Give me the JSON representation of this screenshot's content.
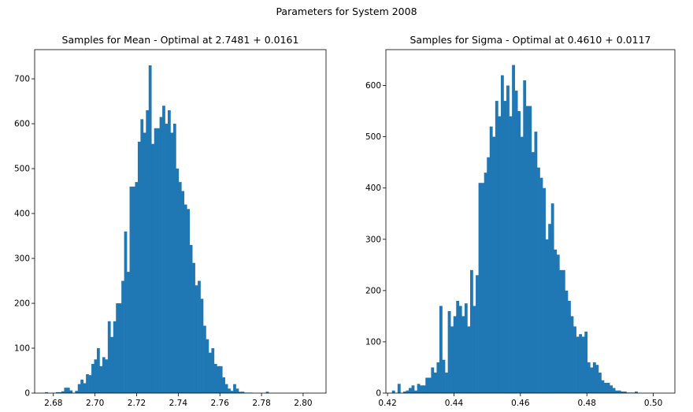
{
  "figure_title": "Parameters for System 2008",
  "colors": {
    "bar": "#1f77b4"
  },
  "chart_data": [
    {
      "type": "bar",
      "title": "Samples for Mean - Optimal at 2.7481 + 0.0161",
      "xlabel": "",
      "ylabel": "",
      "xlim": [
        2.671,
        2.811
      ],
      "ylim": [
        0,
        765
      ],
      "xticks": [
        "2.68",
        "2.70",
        "2.72",
        "2.74",
        "2.76",
        "2.78",
        "2.80"
      ],
      "yticks": [
        "0",
        "100",
        "200",
        "300",
        "400",
        "500",
        "600",
        "700"
      ],
      "bin_start": 2.676,
      "bin_width": 0.00131,
      "values": [
        2,
        0,
        0,
        0,
        2,
        2,
        4,
        12,
        12,
        6,
        0,
        5,
        20,
        30,
        22,
        42,
        40,
        65,
        75,
        100,
        60,
        80,
        75,
        160,
        125,
        160,
        200,
        200,
        250,
        360,
        270,
        460,
        460,
        470,
        560,
        610,
        580,
        630,
        730,
        555,
        590,
        590,
        615,
        640,
        600,
        630,
        580,
        600,
        500,
        470,
        450,
        420,
        410,
        330,
        290,
        240,
        250,
        210,
        150,
        120,
        90,
        100,
        65,
        60,
        60,
        35,
        20,
        10,
        5,
        20,
        10,
        3,
        3,
        1,
        1,
        1,
        0,
        0,
        0,
        0,
        0,
        3,
        0,
        0,
        0,
        0,
        0,
        0,
        0,
        0,
        0,
        0,
        0,
        0,
        0,
        0,
        0,
        0,
        0,
        0
      ],
      "values_note": ""
    },
    {
      "type": "bar",
      "title": "Samples for Sigma - Optimal at 0.4610 + 0.0117",
      "xlabel": "",
      "ylabel": "",
      "xlim": [
        0.4195,
        0.5065
      ],
      "ylim": [
        0,
        670
      ],
      "xticks": [
        "0.42",
        "0.44",
        "0.46",
        "0.48",
        "0.50"
      ],
      "yticks": [
        "0",
        "100",
        "200",
        "300",
        "400",
        "500",
        "600"
      ],
      "bin_start": 0.4205,
      "bin_width": 0.00084,
      "values": [
        0,
        5,
        0,
        18,
        0,
        3,
        5,
        10,
        15,
        5,
        18,
        15,
        15,
        30,
        30,
        50,
        40,
        60,
        170,
        65,
        40,
        160,
        130,
        150,
        180,
        170,
        150,
        175,
        130,
        240,
        170,
        230,
        410,
        410,
        430,
        460,
        520,
        500,
        570,
        540,
        620,
        570,
        600,
        540,
        640,
        590,
        550,
        500,
        610,
        560,
        560,
        470,
        510,
        440,
        420,
        400,
        300,
        330,
        370,
        280,
        270,
        240,
        240,
        200,
        180,
        150,
        130,
        110,
        115,
        110,
        120,
        60,
        50,
        60,
        55,
        40,
        25,
        20,
        20,
        15,
        10,
        5,
        5,
        3,
        3,
        1,
        1,
        1,
        3,
        0,
        0,
        0,
        0,
        0,
        0,
        0,
        0,
        0,
        0,
        0
      ]
    }
  ]
}
